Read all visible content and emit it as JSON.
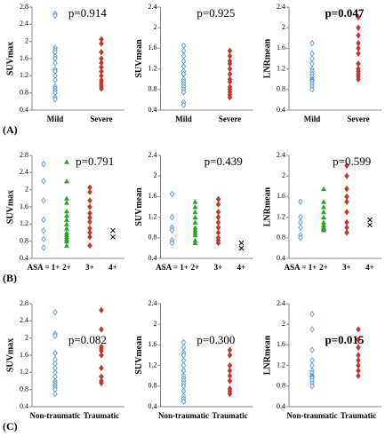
{
  "panel_labels": [
    "(A)",
    "(B)",
    "(C)"
  ],
  "chart_data": [
    {
      "type": "strip",
      "ylabel": "SUVmax",
      "annotation": "p=0.914",
      "annotation_bold": false,
      "categories": [
        "Mild",
        "Severe"
      ],
      "colors": [
        "#4a90d0",
        "#c0392b"
      ],
      "markers": [
        "diamond-open",
        "diamond"
      ],
      "ylim": [
        0.4,
        2.8
      ],
      "yticks": [
        0.4,
        0.8,
        1.2,
        1.6,
        2.0,
        2.4,
        2.8
      ],
      "values": [
        [
          2.65,
          2.6,
          1.85,
          1.8,
          1.75,
          1.65,
          1.6,
          1.5,
          1.35,
          1.3,
          1.2,
          1.1,
          0.95,
          0.9,
          0.85,
          0.8,
          0.7,
          0.65
        ],
        [
          2.05,
          1.95,
          1.75,
          1.6,
          1.5,
          1.4,
          1.3,
          1.2,
          1.1,
          1.05,
          1.0,
          0.95,
          0.9
        ]
      ]
    },
    {
      "type": "strip",
      "ylabel": "SUVmean",
      "annotation": "p=0.925",
      "annotation_bold": false,
      "categories": [
        "Mild",
        "Severe"
      ],
      "colors": [
        "#4a90d0",
        "#c0392b"
      ],
      "markers": [
        "diamond-open",
        "diamond"
      ],
      "ylim": [
        0.4,
        2.4
      ],
      "yticks": [
        0.4,
        0.8,
        1.2,
        1.6,
        2.0,
        2.4
      ],
      "values": [
        [
          1.65,
          1.55,
          1.45,
          1.35,
          1.25,
          1.15,
          1.1,
          1.0,
          0.95,
          0.9,
          0.85,
          0.8,
          0.75,
          0.55,
          0.5
        ],
        [
          1.55,
          1.45,
          1.35,
          1.3,
          1.2,
          1.1,
          1.0,
          0.95,
          0.85,
          0.8,
          0.75,
          0.7,
          0.65
        ]
      ]
    },
    {
      "type": "strip",
      "ylabel": "LNRmean",
      "annotation": "p=0.047",
      "annotation_bold": true,
      "categories": [
        "Mild",
        "Severe"
      ],
      "colors": [
        "#4a90d0",
        "#c0392b"
      ],
      "markers": [
        "diamond-open",
        "diamond"
      ],
      "ylim": [
        0.4,
        2.4
      ],
      "yticks": [
        0.4,
        0.8,
        1.2,
        1.6,
        2.0,
        2.4
      ],
      "values": [
        [
          1.7,
          1.5,
          1.4,
          1.3,
          1.2,
          1.15,
          1.1,
          1.05,
          1.0,
          0.98,
          0.95,
          0.9,
          0.85,
          0.8
        ],
        [
          2.2,
          2.0,
          1.85,
          1.7,
          1.6,
          1.5,
          1.3,
          1.2,
          1.15,
          1.1,
          1.05,
          1.0
        ]
      ]
    },
    {
      "type": "strip",
      "ylabel": "SUVmax",
      "annotation": "p=0.791",
      "annotation_bold": false,
      "categories": [
        "ASA = 1+",
        "2+",
        "3+",
        "4+"
      ],
      "colors": [
        "#4a90d0",
        "#2ca02c",
        "#c0392b",
        "#000000"
      ],
      "markers": [
        "diamond-open",
        "triangle",
        "diamond",
        "cross"
      ],
      "ylim": [
        0.4,
        2.8
      ],
      "yticks": [
        0.4,
        0.8,
        1.2,
        1.6,
        2.0,
        2.4,
        2.8
      ],
      "values": [
        [
          2.6,
          2.2,
          1.75,
          1.3,
          1.05,
          0.85,
          0.65
        ],
        [
          2.65,
          2.2,
          1.8,
          1.7,
          1.5,
          1.4,
          1.3,
          1.2,
          1.1,
          1.0,
          0.95,
          0.9,
          0.85,
          0.8,
          0.7
        ],
        [
          2.05,
          1.95,
          1.75,
          1.6,
          1.45,
          1.35,
          1.25,
          1.1,
          1.0,
          0.9,
          0.7
        ],
        [
          1.05,
          0.9
        ]
      ]
    },
    {
      "type": "strip",
      "ylabel": "SUVmean",
      "annotation": "p=0.439",
      "annotation_bold": false,
      "categories": [
        "ASA = 1+",
        "2+",
        "3+",
        "4+"
      ],
      "colors": [
        "#4a90d0",
        "#2ca02c",
        "#c0392b",
        "#000000"
      ],
      "markers": [
        "diamond-open",
        "triangle",
        "diamond",
        "cross"
      ],
      "ylim": [
        0.4,
        2.4
      ],
      "yticks": [
        0.4,
        0.8,
        1.2,
        1.6,
        2.0,
        2.4
      ],
      "values": [
        [
          1.65,
          1.2,
          1.0,
          0.95,
          0.75,
          0.7
        ],
        [
          1.5,
          1.4,
          1.3,
          1.2,
          1.1,
          1.0,
          0.95,
          0.9,
          0.85,
          0.75,
          0.7
        ],
        [
          1.55,
          1.45,
          1.3,
          1.2,
          1.1,
          1.0,
          0.9,
          0.8,
          0.75,
          0.7
        ],
        [
          0.7,
          0.6
        ]
      ]
    },
    {
      "type": "strip",
      "ylabel": "LNRmean",
      "annotation": "p=0.599",
      "annotation_bold": false,
      "categories": [
        "ASA = 1+",
        "2+",
        "3+",
        "4+"
      ],
      "colors": [
        "#4a90d0",
        "#2ca02c",
        "#c0392b",
        "#000000"
      ],
      "markers": [
        "diamond-open",
        "triangle",
        "diamond",
        "cross"
      ],
      "ylim": [
        0.4,
        2.4
      ],
      "yticks": [
        0.4,
        0.8,
        1.2,
        1.6,
        2.0,
        2.4
      ],
      "values": [
        [
          1.5,
          1.2,
          1.1,
          1.0,
          0.85,
          0.8
        ],
        [
          1.75,
          1.5,
          1.4,
          1.3,
          1.2,
          1.1,
          1.05,
          1.0,
          0.98,
          0.95
        ],
        [
          2.2,
          2.0,
          1.75,
          1.6,
          1.5,
          1.3,
          1.1,
          1.0,
          0.9
        ],
        [
          1.15,
          1.05
        ]
      ]
    },
    {
      "type": "strip",
      "ylabel": "SUVmax",
      "annotation": "p=0.082",
      "annotation_bold": false,
      "categories": [
        "Non-traumatic",
        "Traumatic"
      ],
      "colors": [
        "#4a90d0",
        "#c0392b"
      ],
      "markers": [
        "diamond-open",
        "diamond"
      ],
      "ylim": [
        0.4,
        2.8
      ],
      "yticks": [
        0.4,
        0.8,
        1.2,
        1.6,
        2.0,
        2.4,
        2.8
      ],
      "values": [
        [
          2.6,
          2.1,
          2.05,
          1.65,
          1.5,
          1.4,
          1.3,
          1.2,
          1.1,
          1.0,
          0.95,
          0.9,
          0.85,
          0.8,
          0.7
        ],
        [
          2.65,
          2.2,
          1.8,
          1.75,
          1.7,
          1.6,
          1.3,
          1.1,
          1.0,
          0.95
        ]
      ]
    },
    {
      "type": "strip",
      "ylabel": "SUVmean",
      "annotation": "p=0.300",
      "annotation_bold": false,
      "categories": [
        "Non-traumatic",
        "Traumatic"
      ],
      "colors": [
        "#4a90d0",
        "#c0392b"
      ],
      "markers": [
        "diamond-open",
        "diamond"
      ],
      "ylim": [
        0.4,
        2.4
      ],
      "yticks": [
        0.4,
        0.8,
        1.2,
        1.6,
        2.0,
        2.4
      ],
      "values": [
        [
          1.65,
          1.55,
          1.45,
          1.4,
          1.3,
          1.2,
          1.1,
          1.0,
          0.95,
          0.9,
          0.85,
          0.8,
          0.7,
          0.6,
          0.55,
          0.5
        ],
        [
          1.5,
          1.4,
          1.2,
          1.1,
          1.0,
          0.9,
          0.75,
          0.7,
          0.65
        ]
      ]
    },
    {
      "type": "strip",
      "ylabel": "LNRmean",
      "annotation": "p=0.015",
      "annotation_bold": true,
      "categories": [
        "Non-traumatic",
        "Traumatic"
      ],
      "colors": [
        "#4a90d0",
        "#c0392b"
      ],
      "markers": [
        "diamond-open",
        "diamond"
      ],
      "ylim": [
        0.4,
        2.4
      ],
      "yticks": [
        0.4,
        0.8,
        1.2,
        1.6,
        2.0,
        2.4
      ],
      "values": [
        [
          2.2,
          1.9,
          1.5,
          1.3,
          1.2,
          1.1,
          1.05,
          1.0,
          0.98,
          0.95,
          0.9,
          0.85,
          0.8
        ],
        [
          1.9,
          1.7,
          1.55,
          1.4,
          1.3,
          1.2,
          1.1,
          1.0
        ]
      ]
    }
  ]
}
